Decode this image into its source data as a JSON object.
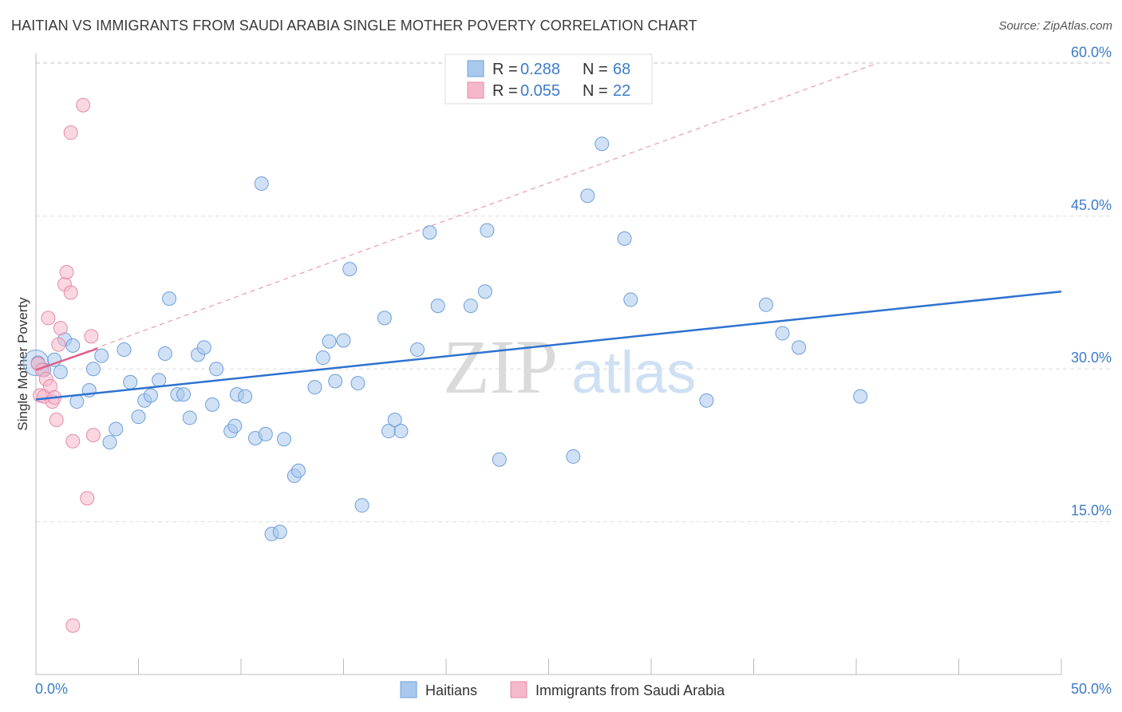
{
  "title": "HAITIAN VS IMMIGRANTS FROM SAUDI ARABIA SINGLE MOTHER POVERTY CORRELATION CHART",
  "source": "Source: ZipAtlas.com",
  "watermark": {
    "zip": "ZIP",
    "atlas": "atlas"
  },
  "legend_top": [
    {
      "r_label": "R =",
      "r_value": "0.288",
      "n_label": "N =",
      "n_value": "68"
    },
    {
      "r_label": "R =",
      "r_value": "0.055",
      "n_label": "N =",
      "n_value": "22"
    }
  ],
  "legend_bottom": [
    "Haitians",
    "Immigrants from Saudi Arabia"
  ],
  "colors": {
    "haitians_fill": "#a9c8ee",
    "haitians_stroke": "#6f9fd8",
    "haitians_line": "#2f72d0",
    "saudi_fill": "#f5b8cb",
    "saudi_stroke": "#e68aa8",
    "saudi_line": "#e0608a",
    "grid": "#dddddd",
    "tick_text": "#3d7cc9"
  },
  "chart_data": {
    "type": "scatter",
    "title": "HAITIAN VS IMMIGRANTS FROM SAUDI ARABIA SINGLE MOTHER POVERTY CORRELATION CHART",
    "ylabel": "Single Mother Poverty",
    "xlabel": "",
    "xlim": [
      0,
      50
    ],
    "ylim": [
      0,
      63
    ],
    "x_ticks": [
      "0.0%",
      "50.0%"
    ],
    "y_ticks": [
      {
        "value": 15,
        "label": "15.0%"
      },
      {
        "value": 30,
        "label": "30.0%"
      },
      {
        "value": 45,
        "label": "45.0%"
      },
      {
        "value": 60,
        "label": "60.0%"
      }
    ],
    "grid": true,
    "legend_position": "top-center",
    "series": [
      {
        "name": "Haitians",
        "r": 0.288,
        "n": 68,
        "trend": {
          "x": [
            0,
            50
          ],
          "y": [
            27.0,
            37.6
          ]
        },
        "points": [
          [
            0.1,
            30.6
          ],
          [
            0.4,
            29.9
          ],
          [
            0.9,
            30.9
          ],
          [
            1.2,
            29.7
          ],
          [
            1.4,
            32.9
          ],
          [
            1.8,
            32.3
          ],
          [
            2.0,
            26.8
          ],
          [
            2.6,
            27.9
          ],
          [
            2.8,
            30.0
          ],
          [
            3.2,
            31.3
          ],
          [
            3.6,
            22.8
          ],
          [
            3.9,
            24.1
          ],
          [
            4.3,
            31.9
          ],
          [
            4.6,
            28.7
          ],
          [
            5.0,
            25.3
          ],
          [
            5.3,
            26.9
          ],
          [
            5.6,
            27.4
          ],
          [
            6.0,
            28.9
          ],
          [
            6.3,
            31.5
          ],
          [
            6.5,
            36.9
          ],
          [
            6.9,
            27.5
          ],
          [
            7.2,
            27.5
          ],
          [
            7.5,
            25.2
          ],
          [
            7.9,
            31.4
          ],
          [
            8.2,
            32.1
          ],
          [
            8.6,
            26.5
          ],
          [
            8.8,
            30.0
          ],
          [
            9.5,
            23.9
          ],
          [
            9.7,
            24.4
          ],
          [
            9.8,
            27.5
          ],
          [
            10.2,
            27.3
          ],
          [
            10.7,
            23.2
          ],
          [
            11.0,
            48.2
          ],
          [
            11.2,
            23.6
          ],
          [
            11.5,
            13.8
          ],
          [
            11.9,
            14.0
          ],
          [
            12.1,
            23.1
          ],
          [
            12.6,
            19.5
          ],
          [
            12.8,
            20.0
          ],
          [
            13.6,
            28.2
          ],
          [
            14.0,
            31.1
          ],
          [
            14.3,
            32.7
          ],
          [
            14.6,
            28.8
          ],
          [
            15.0,
            32.8
          ],
          [
            15.3,
            39.8
          ],
          [
            15.7,
            28.6
          ],
          [
            15.9,
            16.6
          ],
          [
            17.0,
            35.0
          ],
          [
            17.2,
            23.9
          ],
          [
            17.5,
            25.0
          ],
          [
            17.8,
            23.9
          ],
          [
            18.6,
            31.9
          ],
          [
            19.2,
            43.4
          ],
          [
            19.6,
            36.2
          ],
          [
            21.2,
            36.2
          ],
          [
            21.9,
            37.6
          ],
          [
            22.0,
            43.6
          ],
          [
            22.6,
            21.1
          ],
          [
            26.2,
            21.4
          ],
          [
            26.9,
            47.0
          ],
          [
            27.6,
            52.1
          ],
          [
            28.7,
            42.8
          ],
          [
            29.0,
            36.8
          ],
          [
            32.7,
            26.9
          ],
          [
            35.6,
            36.3
          ],
          [
            36.4,
            33.5
          ],
          [
            37.2,
            32.1
          ],
          [
            40.2,
            27.3
          ]
        ]
      },
      {
        "name": "Immigrants from Saudi Arabia",
        "r": 0.055,
        "n": 22,
        "trend": {
          "x": [
            0,
            3.0
          ],
          "y": [
            29.9,
            32.0
          ]
        },
        "trend_extension": {
          "x": [
            0,
            41.0
          ],
          "y": [
            29.9,
            60.0
          ]
        },
        "points": [
          [
            0.1,
            30.5
          ],
          [
            0.2,
            27.4
          ],
          [
            0.3,
            29.9
          ],
          [
            0.4,
            27.3
          ],
          [
            0.5,
            29.0
          ],
          [
            0.6,
            35.0
          ],
          [
            0.7,
            28.3
          ],
          [
            0.8,
            26.8
          ],
          [
            0.9,
            27.2
          ],
          [
            1.0,
            25.0
          ],
          [
            1.1,
            32.4
          ],
          [
            1.2,
            34.0
          ],
          [
            1.4,
            38.3
          ],
          [
            1.5,
            39.5
          ],
          [
            1.7,
            37.5
          ],
          [
            1.7,
            53.2
          ],
          [
            1.8,
            22.9
          ],
          [
            1.8,
            4.8
          ],
          [
            2.3,
            55.9
          ],
          [
            2.5,
            17.3
          ],
          [
            2.7,
            33.2
          ],
          [
            2.8,
            23.5
          ]
        ]
      }
    ]
  }
}
